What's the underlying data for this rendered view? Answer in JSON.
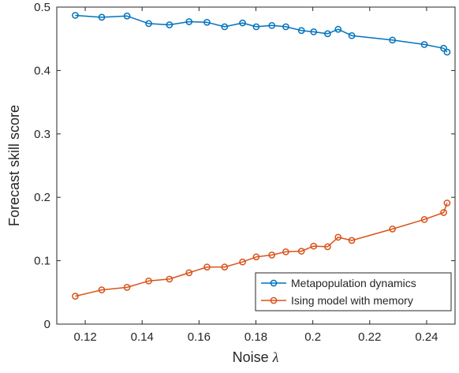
{
  "chart_data": {
    "type": "line",
    "title": "",
    "xlabel": "Noise",
    "xlabel_symbol": "λ",
    "ylabel": "Forecast skill score",
    "xlim": [
      0.11,
      0.25
    ],
    "ylim": [
      0,
      0.5
    ],
    "xticks": [
      0.12,
      0.14,
      0.16,
      0.18,
      0.2,
      0.22,
      0.24
    ],
    "xtick_labels": [
      "0.12",
      "0.14",
      "0.16",
      "0.18",
      "0.2",
      "0.22",
      "0.24"
    ],
    "yticks": [
      0,
      0.1,
      0.2,
      0.3,
      0.4,
      0.5
    ],
    "ytick_labels": [
      "0",
      "0.1",
      "0.2",
      "0.3",
      "0.4",
      "0.5"
    ],
    "grid": false,
    "legend_position": "bottom-right",
    "x": [
      0.1165,
      0.1258,
      0.1347,
      0.1423,
      0.1496,
      0.1565,
      0.1628,
      0.169,
      0.1753,
      0.1801,
      0.1856,
      0.1905,
      0.196,
      0.2003,
      0.2052,
      0.2089,
      0.2137,
      0.228,
      0.2392,
      0.246,
      0.2472
    ],
    "series": [
      {
        "name": "Metapopulation dynamics",
        "color": "#0072bd",
        "values": [
          0.487,
          0.484,
          0.486,
          0.474,
          0.472,
          0.477,
          0.476,
          0.469,
          0.475,
          0.469,
          0.471,
          0.469,
          0.463,
          0.461,
          0.458,
          0.465,
          0.455,
          0.448,
          0.441,
          0.435,
          0.429
        ]
      },
      {
        "name": "Ising model with memory",
        "color": "#d95319",
        "values": [
          0.044,
          0.054,
          0.058,
          0.068,
          0.071,
          0.081,
          0.09,
          0.09,
          0.098,
          0.106,
          0.109,
          0.114,
          0.115,
          0.123,
          0.122,
          0.137,
          0.132,
          0.15,
          0.165,
          0.176,
          0.191
        ]
      }
    ]
  }
}
